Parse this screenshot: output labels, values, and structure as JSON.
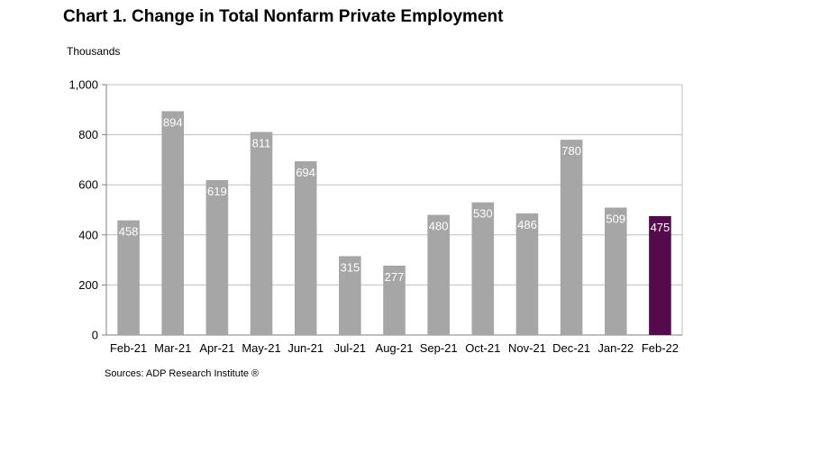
{
  "title": "Chart 1. Change in Total Nonfarm Private Employment",
  "unit_label": "Thousands",
  "source": "Sources: ADP Research Institute ®",
  "colors": {
    "bar": "#a6a6a6",
    "highlight": "#540a4c",
    "grid": "#bfbfbf",
    "axis": "#808080"
  },
  "chart_data": {
    "type": "bar",
    "categories": [
      "Feb-21",
      "Mar-21",
      "Apr-21",
      "May-21",
      "Jun-21",
      "Jul-21",
      "Aug-21",
      "Sep-21",
      "Oct-21",
      "Nov-21",
      "Dec-21",
      "Jan-22",
      "Feb-22"
    ],
    "values": [
      458,
      894,
      619,
      811,
      694,
      315,
      277,
      480,
      530,
      486,
      780,
      509,
      475
    ],
    "data_labels": [
      "458",
      "894",
      "619",
      "811",
      "694",
      "315",
      "277",
      "480",
      "530",
      "486",
      "780",
      "509",
      "475"
    ],
    "highlight_index": 12,
    "ylabel": "Thousands",
    "ylim": [
      0,
      1000
    ],
    "yticks": [
      0,
      200,
      400,
      600,
      800,
      1000
    ],
    "ytick_labels": [
      "0",
      "200",
      "400",
      "600",
      "800",
      "1,000"
    ],
    "grid": true
  }
}
